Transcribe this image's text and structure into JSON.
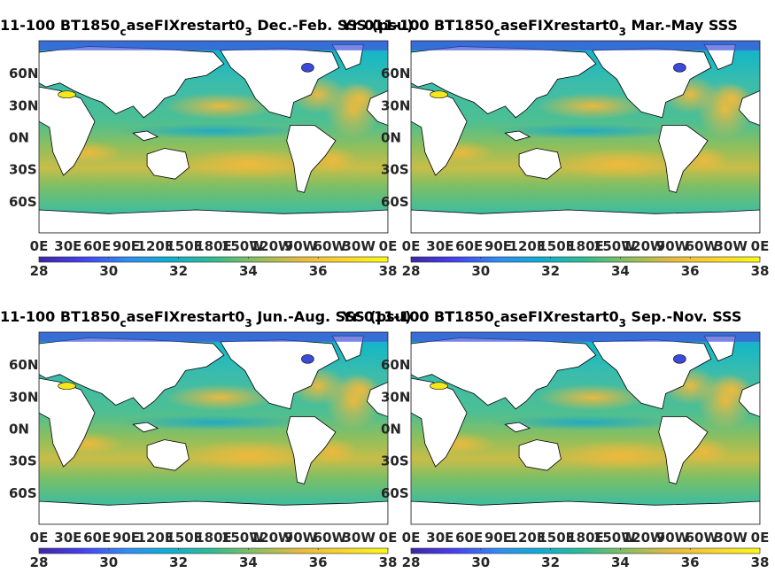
{
  "figure": {
    "colorbar": {
      "ticks": [
        "28",
        "30",
        "32",
        "34",
        "36",
        "38"
      ],
      "colors": [
        "#3e26a8",
        "#4640f4",
        "#2d8ef6",
        "#0cb0d3",
        "#2fbd8f",
        "#8ebf5d",
        "#e8ba3e",
        "#fcd62a",
        "#f9fb15"
      ]
    },
    "colors": {
      "land": "#ffffff",
      "coast": "#000000",
      "cold_patch": "#3b4bd8",
      "hot_patch": "#f6e61c"
    }
  },
  "chart_data": [
    {
      "type": "heatmap",
      "title_main": "11-100 BT1850",
      "title_sub1": "c",
      "title_mid": "aseFIXrestart0",
      "title_sub2": "3",
      "title_end": " Dec.-Feb. SSS (psu)",
      "overlap_text": "Yr 011-100 BT",
      "yticks": [
        "60N",
        "30N",
        "0N",
        "30S",
        "60S"
      ],
      "xticks": [
        "0E",
        "30E",
        "60E",
        "90E",
        "120E",
        "150E",
        "180E",
        "150W",
        "120W",
        "90W",
        "60W",
        "30W",
        "0E"
      ],
      "clim": [
        28,
        38
      ]
    },
    {
      "type": "heatmap",
      "title_main": "Yr 011-100 BT1850",
      "title_sub1": "c",
      "title_mid": "aseFIXrestart0",
      "title_sub2": "3",
      "title_end": " Mar.-May SSS",
      "yticks": [
        "60N",
        "30N",
        "0N",
        "30S",
        "60S"
      ],
      "xticks": [
        "0E",
        "30E",
        "60E",
        "90E",
        "120E",
        "150E",
        "180E",
        "150W",
        "120W",
        "90W",
        "60W",
        "30W",
        "0E"
      ],
      "clim": [
        28,
        38
      ]
    },
    {
      "type": "heatmap",
      "title_main": "11-100 BT1850",
      "title_sub1": "c",
      "title_mid": "aseFIXrestart0",
      "title_sub2": "3",
      "title_end": " Jun.-Aug. SSS (psu)",
      "overlap_text": "Yr 011-100 BT",
      "yticks": [
        "60N",
        "30N",
        "0N",
        "30S",
        "60S"
      ],
      "xticks": [
        "0E",
        "30E",
        "60E",
        "90E",
        "120E",
        "150E",
        "180E",
        "150W",
        "120W",
        "90W",
        "60W",
        "30W",
        "0E"
      ],
      "clim": [
        28,
        38
      ]
    },
    {
      "type": "heatmap",
      "title_main": "Yr 011-100 BT1850",
      "title_sub1": "c",
      "title_mid": "aseFIXrestart0",
      "title_sub2": "3",
      "title_end": " Sep.-Nov. SSS",
      "yticks": [
        "60N",
        "30N",
        "0N",
        "30S",
        "60S"
      ],
      "xticks": [
        "0E",
        "30E",
        "60E",
        "90E",
        "120E",
        "150E",
        "180E",
        "150W",
        "120W",
        "90W",
        "60W",
        "30W",
        "0E"
      ],
      "clim": [
        28,
        38
      ]
    }
  ]
}
